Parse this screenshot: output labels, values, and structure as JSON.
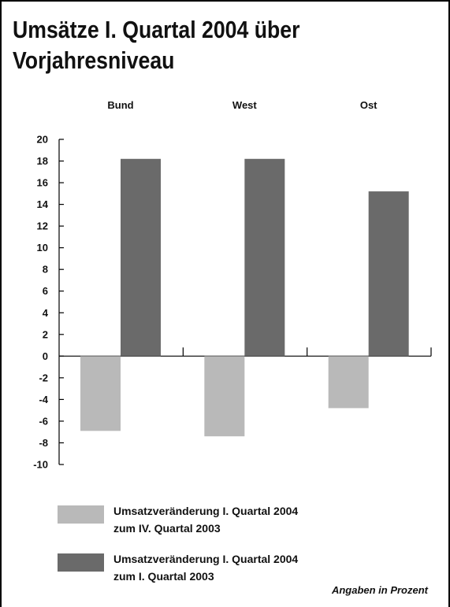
{
  "title_lines": [
    "Umsätze I. Quartal 2004 über",
    "Vorjahresniveau"
  ],
  "note": "Angaben in Prozent",
  "colors": {
    "series1": "#b9b9b9",
    "series2": "#6a6a6a"
  },
  "legend": [
    {
      "line1": "Umsatzveränderung I. Quartal 2004",
      "line2": "zum IV. Quartal 2003"
    },
    {
      "line1": "Umsatzveränderung I. Quartal 2004",
      "line2": "zum I. Quartal 2003"
    }
  ],
  "chart_data": {
    "type": "bar",
    "categories": [
      "Bund",
      "West",
      "Ost"
    ],
    "series": [
      {
        "name": "Umsatzveränderung I. Quartal 2004 zum IV. Quartal 2003",
        "values": [
          -6.9,
          -7.4,
          -4.8
        ]
      },
      {
        "name": "Umsatzveränderung I. Quartal 2004 zum I. Quartal 2003",
        "values": [
          18.2,
          18.2,
          15.2
        ]
      }
    ],
    "ylim": [
      -10,
      20
    ],
    "yticks": [
      20,
      18,
      16,
      14,
      12,
      10,
      8,
      6,
      4,
      2,
      0,
      -2,
      -4,
      -6,
      -8,
      -10
    ],
    "category_label_position": "top",
    "legend_position": "bottom-left",
    "grid": false,
    "xlabel": "",
    "ylabel": ""
  }
}
